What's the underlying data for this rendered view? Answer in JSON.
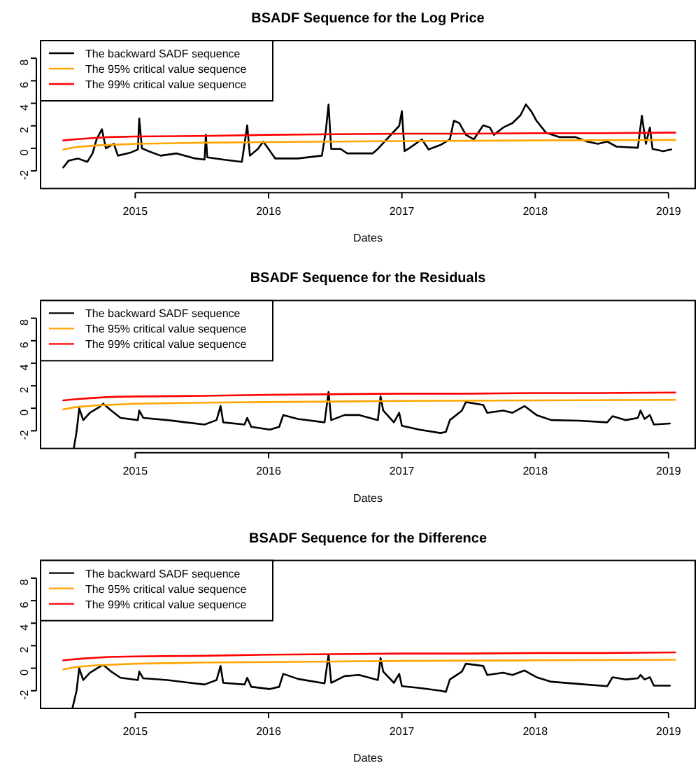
{
  "chart_data": [
    {
      "type": "line",
      "title": "BSADF Sequence for the Log Price",
      "xlabel": "Dates",
      "xlim": [
        2014.29,
        2019.2
      ],
      "xticks": [
        2015,
        2016,
        2017,
        2018,
        2019
      ],
      "ylim": [
        -3.57,
        9.57
      ],
      "yticks": [
        -2,
        0,
        2,
        4,
        6,
        8
      ],
      "legend": "top left",
      "grid": false,
      "series": [
        {
          "name": "The backward SADF sequence",
          "color": "#000000",
          "x": [
            2014.46,
            2014.5,
            2014.57,
            2014.64,
            2014.68,
            2014.71,
            2014.75,
            2014.78,
            2014.84,
            2014.87,
            2014.96,
            2015.02,
            2015.03,
            2015.05,
            2015.1,
            2015.19,
            2015.31,
            2015.45,
            2015.52,
            2015.53,
            2015.54,
            2015.66,
            2015.8,
            2015.84,
            2015.86,
            2015.92,
            2015.96,
            2016.0,
            2016.05,
            2016.22,
            2016.4,
            2016.43,
            2016.45,
            2016.47,
            2016.54,
            2016.59,
            2016.78,
            2016.82,
            2016.98,
            2017.0,
            2017.02,
            2017.06,
            2017.15,
            2017.2,
            2017.29,
            2017.36,
            2017.39,
            2017.43,
            2017.48,
            2017.54,
            2017.61,
            2017.66,
            2017.69,
            2017.76,
            2017.83,
            2017.89,
            2017.93,
            2017.97,
            2018.01,
            2018.08,
            2018.18,
            2018.3,
            2018.39,
            2018.47,
            2018.54,
            2018.61,
            2018.77,
            2018.8,
            2018.83,
            2018.86,
            2018.88,
            2018.96,
            2019.02
          ],
          "values": [
            -1.7,
            -1.1,
            -0.9,
            -1.2,
            -0.45,
            0.8,
            1.7,
            0,
            0.4,
            -0.65,
            -0.4,
            -0.1,
            2.65,
            0,
            -0.25,
            -0.65,
            -0.45,
            -0.9,
            -1.0,
            1.2,
            -0.8,
            -1.0,
            -1.2,
            2.05,
            -0.65,
            -0.05,
            0.6,
            -0.05,
            -0.9,
            -0.9,
            -0.65,
            1.6,
            3.9,
            -0.05,
            -0.05,
            -0.45,
            -0.45,
            -0.05,
            2.0,
            3.3,
            -0.25,
            0.05,
            0.8,
            -0.1,
            0.3,
            0.8,
            2.45,
            2.25,
            1.2,
            0.8,
            2.05,
            1.85,
            1.2,
            1.85,
            2.25,
            2.95,
            3.9,
            3.3,
            2.45,
            1.4,
            1.0,
            1.0,
            0.6,
            0.4,
            0.6,
            0.15,
            0.05,
            2.9,
            0.4,
            1.85,
            -0.05,
            -0.25,
            -0.1
          ]
        },
        {
          "name": "The 95% critical value sequence",
          "color": "#ffa500",
          "x": [
            2014.46,
            2014.55,
            2014.7,
            2015.0,
            2015.5,
            2016.0,
            2016.5,
            2017.0,
            2018.0,
            2019.05
          ],
          "values": [
            -0.1,
            0.1,
            0.25,
            0.4,
            0.5,
            0.55,
            0.6,
            0.65,
            0.7,
            0.75
          ]
        },
        {
          "name": "The 99% critical value sequence",
          "color": "#ff0000",
          "x": [
            2014.46,
            2014.6,
            2014.8,
            2015.0,
            2015.5,
            2016.0,
            2016.5,
            2017.0,
            2017.5,
            2018.0,
            2018.5,
            2019.05
          ],
          "values": [
            0.7,
            0.85,
            1.0,
            1.05,
            1.1,
            1.2,
            1.25,
            1.3,
            1.3,
            1.35,
            1.35,
            1.4
          ]
        }
      ]
    },
    {
      "type": "line",
      "title": "BSADF Sequence for the Residuals",
      "xlabel": "Dates",
      "xlim": [
        2014.29,
        2019.2
      ],
      "xticks": [
        2015,
        2016,
        2017,
        2018,
        2019
      ],
      "ylim": [
        -3.57,
        9.57
      ],
      "yticks": [
        -2,
        0,
        2,
        4,
        6,
        8
      ],
      "legend": "top left",
      "grid": false,
      "series": [
        {
          "name": "The backward SADF sequence",
          "color": "#000000",
          "x": [
            2014.54,
            2014.56,
            2014.58,
            2014.61,
            2014.66,
            2014.73,
            2014.76,
            2014.82,
            2014.89,
            2015.02,
            2015.03,
            2015.06,
            2015.24,
            2015.38,
            2015.52,
            2015.61,
            2015.64,
            2015.66,
            2015.82,
            2015.84,
            2015.87,
            2016.01,
            2016.08,
            2016.11,
            2016.22,
            2016.42,
            2016.45,
            2016.47,
            2016.57,
            2016.68,
            2016.82,
            2016.84,
            2016.86,
            2016.94,
            2016.98,
            2017.0,
            2017.13,
            2017.29,
            2017.33,
            2017.36,
            2017.45,
            2017.48,
            2017.61,
            2017.64,
            2017.76,
            2017.83,
            2017.92,
            2018.01,
            2018.12,
            2018.33,
            2018.54,
            2018.58,
            2018.68,
            2018.77,
            2018.79,
            2018.82,
            2018.86,
            2018.89,
            2019.01
          ],
          "values": [
            -3.5,
            -2.1,
            0,
            -1.05,
            -0.4,
            0.1,
            0.4,
            -0.2,
            -0.85,
            -1.05,
            -0.2,
            -0.85,
            -1.05,
            -1.25,
            -1.45,
            -1.05,
            0.2,
            -1.25,
            -1.45,
            -0.85,
            -1.65,
            -1.9,
            -1.65,
            -0.6,
            -0.95,
            -1.25,
            1.45,
            -1.05,
            -0.6,
            -0.6,
            -1.05,
            1.05,
            -0.2,
            -1.25,
            -0.4,
            -1.55,
            -1.9,
            -2.2,
            -2.1,
            -1.05,
            -0.2,
            0.55,
            0.3,
            -0.4,
            -0.2,
            -0.4,
            0.2,
            -0.6,
            -1.05,
            -1.1,
            -1.25,
            -0.7,
            -1.05,
            -0.85,
            -0.2,
            -0.95,
            -0.6,
            -1.45,
            -1.35
          ]
        },
        {
          "name": "The 95% critical value sequence",
          "color": "#ffa500",
          "x": [
            2014.46,
            2014.55,
            2014.7,
            2015.0,
            2015.5,
            2016.0,
            2016.5,
            2017.0,
            2018.0,
            2019.05
          ],
          "values": [
            -0.1,
            0.1,
            0.25,
            0.4,
            0.5,
            0.55,
            0.6,
            0.65,
            0.7,
            0.75
          ]
        },
        {
          "name": "The 99% critical value sequence",
          "color": "#ff0000",
          "x": [
            2014.46,
            2014.6,
            2014.8,
            2015.0,
            2015.5,
            2016.0,
            2016.5,
            2017.0,
            2017.5,
            2018.0,
            2018.5,
            2019.05
          ],
          "values": [
            0.7,
            0.85,
            1.0,
            1.05,
            1.1,
            1.2,
            1.25,
            1.3,
            1.3,
            1.35,
            1.35,
            1.4
          ]
        }
      ]
    },
    {
      "type": "line",
      "title": "BSADF Sequence for the Difference",
      "xlabel": "Dates",
      "xlim": [
        2014.29,
        2019.2
      ],
      "xticks": [
        2015,
        2016,
        2017,
        2018,
        2019
      ],
      "ylim": [
        -3.57,
        9.57
      ],
      "yticks": [
        -2,
        0,
        2,
        4,
        6,
        8
      ],
      "legend": "top left",
      "grid": false,
      "series": [
        {
          "name": "The backward SADF sequence",
          "color": "#000000",
          "x": [
            2014.53,
            2014.56,
            2014.58,
            2014.61,
            2014.66,
            2014.73,
            2014.76,
            2014.82,
            2014.89,
            2015.02,
            2015.03,
            2015.06,
            2015.24,
            2015.38,
            2015.52,
            2015.61,
            2015.64,
            2015.66,
            2015.82,
            2015.84,
            2015.87,
            2016.01,
            2016.08,
            2016.11,
            2016.22,
            2016.42,
            2016.45,
            2016.47,
            2016.57,
            2016.68,
            2016.82,
            2016.84,
            2016.86,
            2016.94,
            2016.98,
            2017.0,
            2017.13,
            2017.29,
            2017.33,
            2017.36,
            2017.45,
            2017.48,
            2017.61,
            2017.64,
            2017.76,
            2017.83,
            2017.92,
            2018.01,
            2018.12,
            2018.33,
            2018.54,
            2018.58,
            2018.68,
            2018.77,
            2018.79,
            2018.82,
            2018.86,
            2018.89,
            2019.01
          ],
          "values": [
            -3.5,
            -2.0,
            0,
            -1.05,
            -0.4,
            0.1,
            0.3,
            -0.3,
            -0.85,
            -1.05,
            -0.3,
            -0.9,
            -1.05,
            -1.25,
            -1.45,
            -1.05,
            0.2,
            -1.3,
            -1.45,
            -0.85,
            -1.65,
            -1.85,
            -1.65,
            -0.5,
            -0.95,
            -1.35,
            1.2,
            -1.3,
            -0.7,
            -0.6,
            -1.05,
            0.9,
            -0.3,
            -1.3,
            -0.5,
            -1.6,
            -1.75,
            -2.0,
            -2.1,
            -1.0,
            -0.3,
            0.4,
            0.2,
            -0.6,
            -0.4,
            -0.6,
            -0.2,
            -0.8,
            -1.2,
            -1.4,
            -1.6,
            -0.8,
            -1.0,
            -0.9,
            -0.6,
            -1.0,
            -0.8,
            -1.55,
            -1.55
          ]
        },
        {
          "name": "The 95% critical value sequence",
          "color": "#ffa500",
          "x": [
            2014.46,
            2014.55,
            2014.7,
            2015.0,
            2015.5,
            2016.0,
            2016.5,
            2017.0,
            2018.0,
            2019.05
          ],
          "values": [
            -0.1,
            0.1,
            0.25,
            0.4,
            0.5,
            0.55,
            0.6,
            0.65,
            0.7,
            0.75
          ]
        },
        {
          "name": "The 99% critical value sequence",
          "color": "#ff0000",
          "x": [
            2014.46,
            2014.6,
            2014.8,
            2015.0,
            2015.5,
            2016.0,
            2016.5,
            2017.0,
            2017.5,
            2018.0,
            2018.5,
            2019.05
          ],
          "values": [
            0.7,
            0.85,
            1.0,
            1.05,
            1.1,
            1.2,
            1.25,
            1.3,
            1.3,
            1.35,
            1.35,
            1.4
          ]
        }
      ]
    }
  ]
}
